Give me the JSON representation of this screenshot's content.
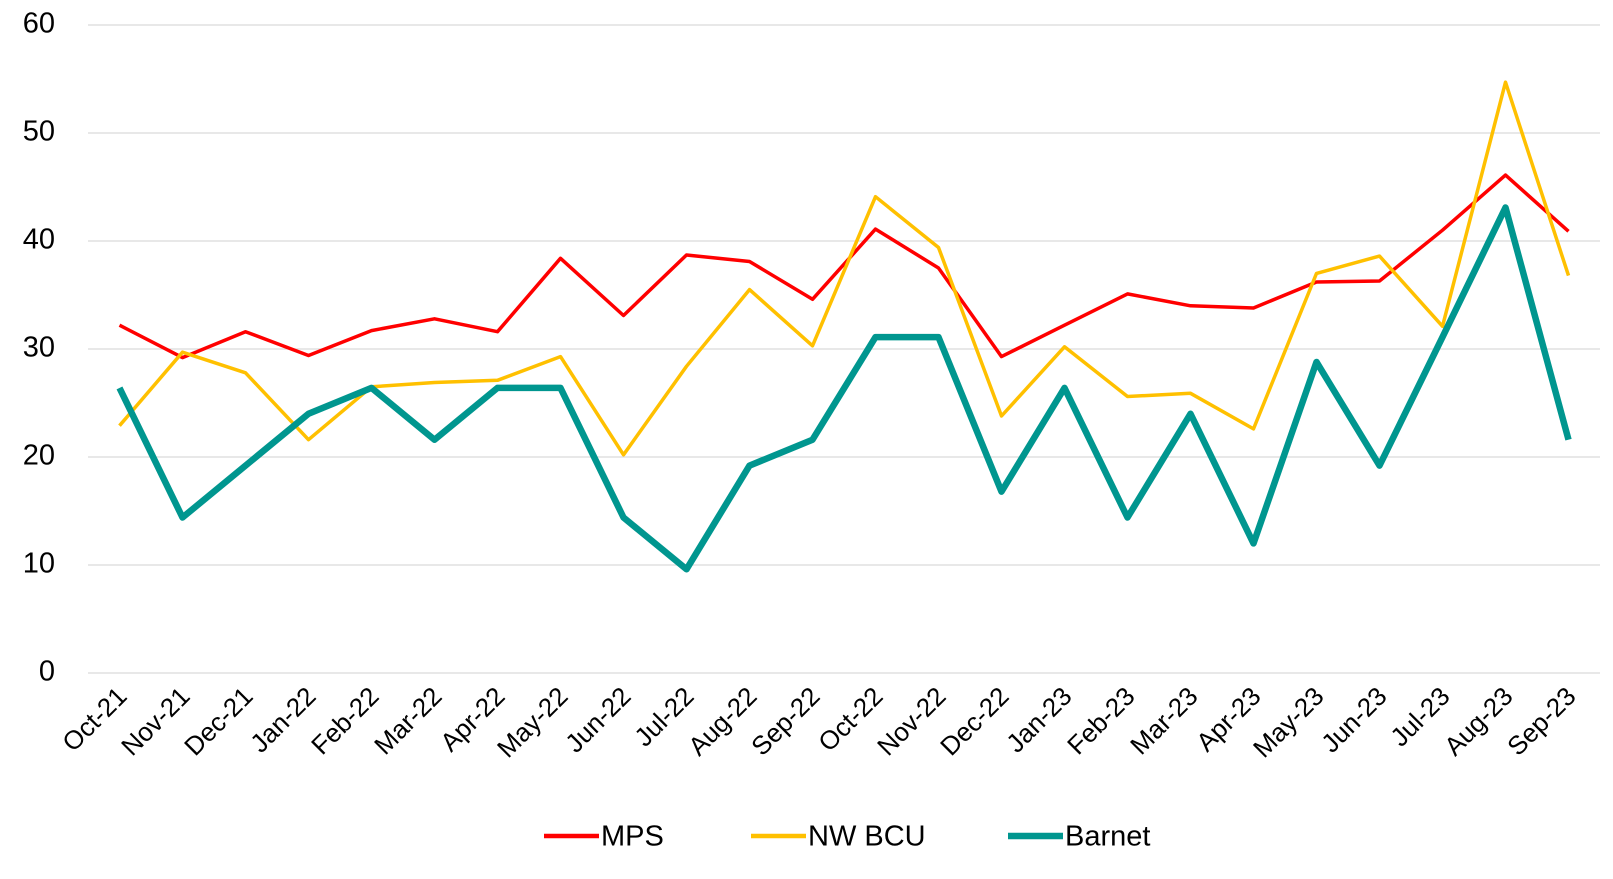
{
  "chart_data": {
    "type": "line",
    "categories": [
      "Oct-21",
      "Nov-21",
      "Dec-21",
      "Jan-22",
      "Feb-22",
      "Mar-22",
      "Apr-22",
      "May-22",
      "Jun-22",
      "Jul-22",
      "Aug-22",
      "Sep-22",
      "Oct-22",
      "Nov-22",
      "Dec-22",
      "Jan-23",
      "Feb-23",
      "Mar-23",
      "Apr-23",
      "May-23",
      "Jun-23",
      "Jul-23",
      "Aug-23",
      "Sep-23"
    ],
    "series": [
      {
        "name": "MPS",
        "color": "#ff0000",
        "values": [
          32.2,
          29.2,
          31.6,
          29.4,
          31.7,
          32.8,
          31.6,
          38.4,
          33.1,
          38.7,
          38.1,
          34.6,
          41.1,
          37.5,
          29.3,
          32.2,
          35.1,
          34.0,
          33.8,
          36.2,
          36.3,
          41.0,
          46.1,
          40.9
        ]
      },
      {
        "name": "NW BCU",
        "color": "#ffc000",
        "values": [
          22.9,
          29.7,
          27.8,
          21.6,
          26.5,
          26.9,
          27.1,
          29.3,
          20.2,
          28.4,
          35.5,
          30.3,
          44.1,
          39.4,
          23.8,
          30.2,
          25.6,
          25.9,
          22.6,
          37.0,
          38.6,
          32.1,
          54.7,
          36.8
        ]
      },
      {
        "name": "Barnet",
        "color": "#00968f",
        "values": [
          26.4,
          14.4,
          19.2,
          24.0,
          26.4,
          21.6,
          26.4,
          26.4,
          14.4,
          9.6,
          19.2,
          21.6,
          31.1,
          31.1,
          16.8,
          26.4,
          14.4,
          24.0,
          12.0,
          28.8,
          19.2,
          31.1,
          43.1,
          21.6
        ]
      }
    ],
    "ylim": [
      0,
      60
    ],
    "yticks": [
      0,
      10,
      20,
      30,
      40,
      50,
      60
    ],
    "grid": true,
    "legend": "bottom"
  }
}
